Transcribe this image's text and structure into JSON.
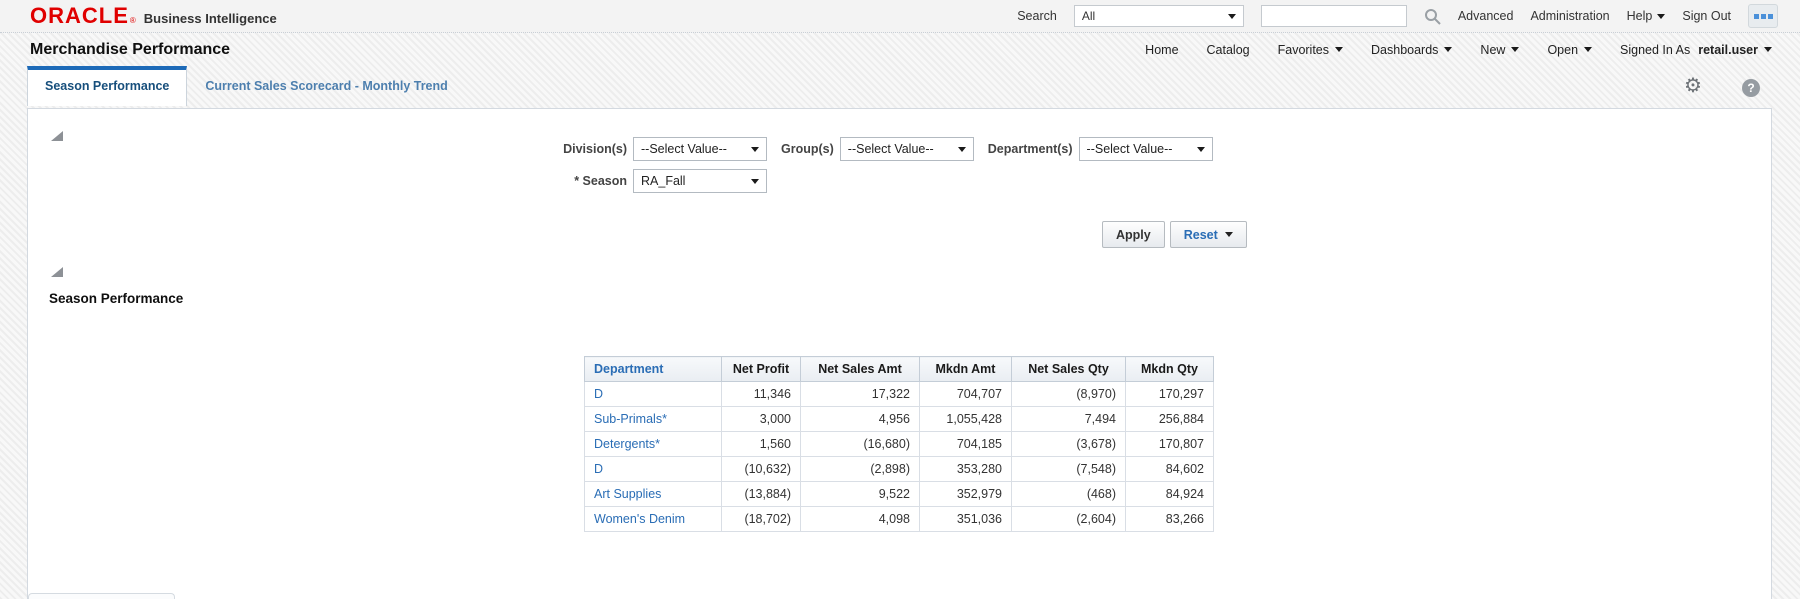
{
  "header": {
    "logo": "ORACLE",
    "logo_registered": "®",
    "product": "Business Intelligence",
    "search_label": "Search",
    "search_scope_value": "All",
    "search_input_value": "",
    "links": [
      "Advanced",
      "Administration"
    ],
    "help_label": "Help",
    "sign_out_label": "Sign Out"
  },
  "navbar": {
    "page_title": "Merchandise Performance",
    "items": [
      {
        "label": "Home"
      },
      {
        "label": "Catalog"
      },
      {
        "label": "Favorites"
      },
      {
        "label": "Dashboards"
      },
      {
        "label": "New"
      },
      {
        "label": "Open"
      }
    ],
    "signed_in_as_label": "Signed In As",
    "user": "retail.user"
  },
  "tabs": [
    {
      "label": "Season Performance",
      "active": true
    },
    {
      "label": "Current Sales Scorecard - Monthly Trend",
      "active": false
    }
  ],
  "prompts": {
    "fields": [
      {
        "label": "Division(s)",
        "value": "--Select Value--"
      },
      {
        "label": "Group(s)",
        "value": "--Select Value--"
      },
      {
        "label": "Department(s)",
        "value": "--Select Value--"
      },
      {
        "label": "* Season",
        "value": "RA_Fall"
      }
    ],
    "apply_label": "Apply",
    "reset_label": "Reset"
  },
  "section": {
    "title": "Season Performance"
  },
  "table": {
    "columns": [
      "Department",
      "Net Profit",
      "Net Sales Amt",
      "Mkdn Amt",
      "Net Sales Qty",
      "Mkdn Qty"
    ],
    "rows": [
      [
        "D",
        "11,346",
        "17,322",
        "704,707",
        "(8,970)",
        "170,297"
      ],
      [
        "Sub-Primals*",
        "3,000",
        "4,956",
        "1,055,428",
        "7,494",
        "256,884"
      ],
      [
        "Detergents*",
        "1,560",
        "(16,680)",
        "704,185",
        "(3,678)",
        "170,807"
      ],
      [
        "D",
        "(10,632)",
        "(2,898)",
        "353,280",
        "(7,548)",
        "84,602"
      ],
      [
        "Art Supplies",
        "(13,884)",
        "9,522",
        "352,979",
        "(468)",
        "84,924"
      ],
      [
        "Women's Denim",
        "(18,702)",
        "4,098",
        "351,036",
        "(2,604)",
        "83,266"
      ]
    ]
  },
  "icons": {
    "search": "magnifier",
    "settings": "gear",
    "help": "question-mark-circle",
    "apps": "grid-dots",
    "dropdown": "caret-down",
    "section_collapse": "corner-triangle"
  },
  "colors": {
    "oracle_red": "#e00000",
    "accent_blue": "#1d6ab8",
    "link_blue": "#2a6db5",
    "panel_border": "#d3d9e0"
  }
}
